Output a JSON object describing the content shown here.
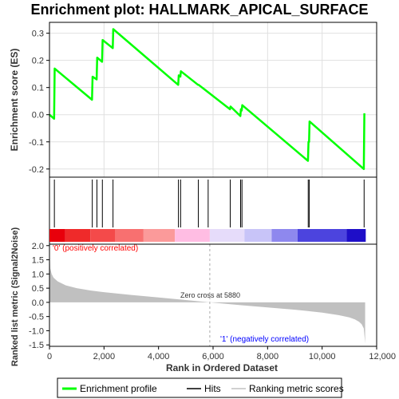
{
  "chart_data": [
    {
      "type": "line",
      "title": "Enrichment plot: HALLMARK_APICAL_SURFACE",
      "ylabel": "Enrichment score (ES)",
      "ylim": [
        -0.23,
        0.34
      ],
      "y_ticks": [
        -0.2,
        -0.1,
        0.0,
        0.1,
        0.2,
        0.3
      ],
      "y_tick_labels": [
        "-0.2",
        "-0.1",
        "0.0",
        "0.1",
        "0.2",
        "0.3"
      ],
      "grid": true,
      "series": [
        {
          "name": "Enrichment profile",
          "color": "#00ff00",
          "x": [
            0,
            170,
            190,
            1560,
            1580,
            1730,
            1750,
            1930,
            1950,
            2320,
            2340,
            4720,
            4740,
            4800,
            4820,
            5450,
            5470,
            6620,
            6640,
            7000,
            7020,
            7050,
            7070,
            9480,
            9500,
            9520,
            9540,
            11530,
            11550
          ],
          "y": [
            0.0,
            -0.015,
            0.17,
            0.055,
            0.14,
            0.13,
            0.21,
            0.195,
            0.275,
            0.245,
            0.315,
            0.11,
            0.145,
            0.14,
            0.16,
            0.11,
            0.11,
            0.02,
            0.03,
            -0.005,
            0.02,
            0.015,
            0.035,
            -0.17,
            -0.1,
            -0.1,
            -0.025,
            -0.2,
            0.005
          ]
        }
      ]
    },
    {
      "type": "rug",
      "series": [
        {
          "name": "Hits",
          "color": "#000000",
          "x": [
            180,
            1570,
            1740,
            1940,
            2330,
            4730,
            4810,
            5460,
            5820,
            6630,
            7010,
            7060,
            9490,
            9530,
            11540
          ]
        }
      ]
    },
    {
      "type": "heatmap",
      "band_colors": [
        "#e8000b",
        "#ef2a2a",
        "#f44a4a",
        "#f87070",
        "#fb9a9a",
        "#ffbde3",
        "#e6dcfa",
        "#c8c4f8",
        "#8e88ee",
        "#4c44de",
        "#1e0ec8"
      ],
      "band_edges": [
        0,
        580,
        1500,
        2400,
        3450,
        4600,
        5880,
        7150,
        8150,
        9100,
        10900,
        11600
      ]
    },
    {
      "type": "area",
      "xlabel": "Rank in Ordered Dataset",
      "ylabel": "Ranked list metric (Signal2Noise)",
      "xlim": [
        0,
        12000
      ],
      "ylim": [
        -1.55,
        2.05
      ],
      "x_ticks": [
        0,
        2000,
        4000,
        6000,
        8000,
        10000,
        12000
      ],
      "x_tick_labels": [
        "0",
        "2,000",
        "4,000",
        "6,000",
        "8,000",
        "10,000",
        "12,000"
      ],
      "y_ticks": [
        -1.5,
        -1.0,
        -0.5,
        0.0,
        0.5,
        1.0,
        1.5,
        2.0
      ],
      "y_tick_labels": [
        "-1.5",
        "-1.0",
        "-0.5",
        "0.0",
        "0.5",
        "1.0",
        "1.5",
        "2.0"
      ],
      "series": [
        {
          "name": "Ranking metric scores",
          "color": "#c0c0c0",
          "x": [
            0,
            30,
            80,
            150,
            300,
            600,
            1000,
            1500,
            2000,
            3000,
            4000,
            5000,
            5880,
            7000,
            8000,
            9000,
            10000,
            10600,
            11000,
            11200,
            11350,
            11450,
            11530,
            11580
          ],
          "y": [
            1.95,
            1.2,
            1.0,
            0.87,
            0.74,
            0.6,
            0.5,
            0.42,
            0.36,
            0.26,
            0.17,
            0.08,
            0.0,
            -0.1,
            -0.18,
            -0.26,
            -0.36,
            -0.45,
            -0.53,
            -0.6,
            -0.68,
            -0.77,
            -0.92,
            -1.45
          ]
        }
      ],
      "annotations": {
        "zero_cross": "Zero cross at 5880",
        "zero_cross_x": 5880,
        "positive": "'0' (positively correlated)",
        "negative": "'1' (negatively correlated)"
      }
    }
  ],
  "legend": {
    "items": [
      {
        "label": "Enrichment profile",
        "color": "#00ff00"
      },
      {
        "label": "Hits",
        "color": "#000000"
      },
      {
        "label": "Ranking metric scores",
        "color": "#c0c0c0"
      }
    ]
  }
}
